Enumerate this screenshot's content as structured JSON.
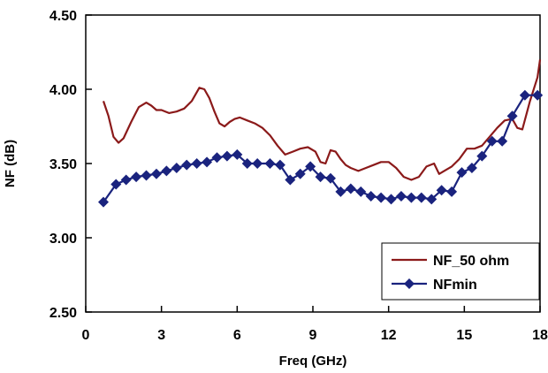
{
  "chart_data": {
    "type": "line",
    "xlabel": "Freq (GHz)",
    "ylabel": "NF (dB)",
    "xlim": [
      0,
      18
    ],
    "ylim": [
      2.5,
      4.5
    ],
    "x_ticks": [
      0,
      3,
      6,
      9,
      12,
      15,
      18
    ],
    "y_ticks": [
      2.5,
      3.0,
      3.5,
      4.0,
      4.5
    ],
    "x_tick_labels": [
      "0",
      "3",
      "6",
      "9",
      "12",
      "15",
      "18"
    ],
    "y_tick_labels": [
      "2.50",
      "3.00",
      "3.50",
      "4.00",
      "4.50"
    ],
    "grid": false,
    "legend_position": "bottom-right",
    "series": [
      {
        "name": "NF_50 ohm",
        "color": "#8b1a1a",
        "marker": "none",
        "x": [
          0.7,
          0.9,
          1.1,
          1.3,
          1.5,
          1.8,
          2.1,
          2.4,
          2.6,
          2.8,
          3.0,
          3.3,
          3.6,
          3.9,
          4.2,
          4.5,
          4.7,
          4.9,
          5.1,
          5.3,
          5.5,
          5.7,
          5.9,
          6.1,
          6.4,
          6.7,
          7.0,
          7.3,
          7.6,
          7.9,
          8.2,
          8.5,
          8.8,
          9.1,
          9.3,
          9.5,
          9.7,
          9.9,
          10.1,
          10.3,
          10.5,
          10.8,
          11.1,
          11.4,
          11.7,
          12.0,
          12.3,
          12.6,
          12.9,
          13.2,
          13.5,
          13.8,
          14.0,
          14.2,
          14.5,
          14.8,
          15.1,
          15.4,
          15.7,
          16.0,
          16.3,
          16.6,
          16.9,
          17.1,
          17.3,
          17.6,
          17.9,
          18.0
        ],
        "y": [
          3.92,
          3.82,
          3.68,
          3.64,
          3.67,
          3.78,
          3.88,
          3.91,
          3.89,
          3.86,
          3.86,
          3.84,
          3.85,
          3.87,
          3.92,
          4.01,
          4.0,
          3.94,
          3.85,
          3.77,
          3.75,
          3.78,
          3.8,
          3.81,
          3.79,
          3.77,
          3.74,
          3.69,
          3.62,
          3.56,
          3.58,
          3.6,
          3.61,
          3.58,
          3.51,
          3.5,
          3.59,
          3.58,
          3.53,
          3.49,
          3.47,
          3.45,
          3.47,
          3.49,
          3.51,
          3.51,
          3.47,
          3.41,
          3.39,
          3.41,
          3.48,
          3.5,
          3.43,
          3.45,
          3.48,
          3.53,
          3.6,
          3.6,
          3.62,
          3.68,
          3.74,
          3.79,
          3.8,
          3.74,
          3.73,
          3.92,
          4.08,
          4.2
        ]
      },
      {
        "name": "NFmin",
        "color": "#1a237e",
        "marker": "diamond",
        "x": [
          0.7,
          1.2,
          1.6,
          2.0,
          2.4,
          2.8,
          3.2,
          3.6,
          4.0,
          4.4,
          4.8,
          5.2,
          5.6,
          6.0,
          6.4,
          6.8,
          7.3,
          7.7,
          8.1,
          8.5,
          8.9,
          9.3,
          9.7,
          10.1,
          10.5,
          10.9,
          11.3,
          11.7,
          12.1,
          12.5,
          12.9,
          13.3,
          13.7,
          14.1,
          14.5,
          14.9,
          15.3,
          15.7,
          16.1,
          16.5,
          16.9,
          17.4,
          17.9
        ],
        "y": [
          3.24,
          3.36,
          3.39,
          3.41,
          3.42,
          3.43,
          3.45,
          3.47,
          3.49,
          3.5,
          3.51,
          3.54,
          3.55,
          3.56,
          3.5,
          3.5,
          3.5,
          3.49,
          3.39,
          3.43,
          3.48,
          3.41,
          3.4,
          3.31,
          3.33,
          3.31,
          3.28,
          3.27,
          3.26,
          3.28,
          3.27,
          3.27,
          3.26,
          3.32,
          3.31,
          3.44,
          3.47,
          3.55,
          3.65,
          3.65,
          3.82,
          3.96,
          3.96
        ]
      }
    ]
  }
}
